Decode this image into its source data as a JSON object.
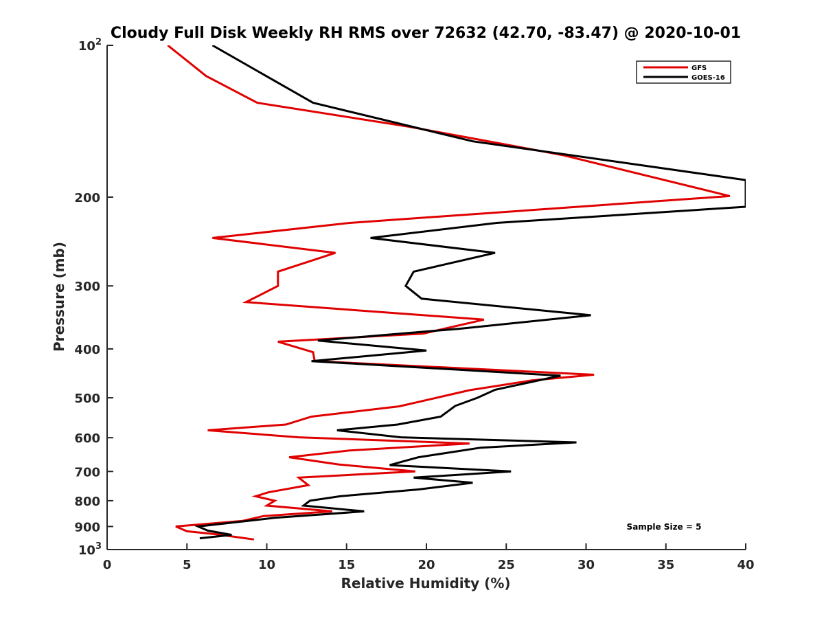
{
  "chart_data": {
    "type": "line",
    "title": "Cloudy Full Disk Weekly RH RMS over 72632 (42.70, -83.47) @ 2020-10-01",
    "xlabel": "Relative Humidity (%)",
    "ylabel": "Pressure (mb)",
    "xlim": [
      0,
      40
    ],
    "ylim": [
      100,
      1000
    ],
    "yscale": "log",
    "yreversed": true,
    "grid": false,
    "x_ticks": [
      "0",
      "5",
      "10",
      "15",
      "20",
      "25",
      "30",
      "35",
      "40"
    ],
    "x_tick_values": [
      0,
      5,
      10,
      15,
      20,
      25,
      30,
      35,
      40
    ],
    "y_ticks": [
      {
        "value": 100,
        "label": "10",
        "sup": "2"
      },
      {
        "value": 200,
        "label": "200",
        "sup": ""
      },
      {
        "value": 300,
        "label": "300",
        "sup": ""
      },
      {
        "value": 400,
        "label": "400",
        "sup": ""
      },
      {
        "value": 500,
        "label": "500",
        "sup": ""
      },
      {
        "value": 600,
        "label": "600",
        "sup": ""
      },
      {
        "value": 700,
        "label": "700",
        "sup": ""
      },
      {
        "value": 800,
        "label": "800",
        "sup": ""
      },
      {
        "value": 900,
        "label": "900",
        "sup": ""
      },
      {
        "value": 1000,
        "label": "10",
        "sup": "3"
      }
    ],
    "legend_position": "top-right",
    "annotation": "Sample Size = 5",
    "series": [
      {
        "name": "GFS",
        "color": "#e00000",
        "points": [
          [
            3.8,
            100
          ],
          [
            6.2,
            115
          ],
          [
            9.4,
            130
          ],
          [
            18.9,
            145
          ],
          [
            28.5,
            165
          ],
          [
            39,
            199
          ],
          [
            15.2,
            225
          ],
          [
            6.6,
            241
          ],
          [
            14.3,
            258
          ],
          [
            10.7,
            281
          ],
          [
            10.7,
            300
          ],
          [
            8.7,
            323
          ],
          [
            23.6,
            350
          ],
          [
            19.8,
            373
          ],
          [
            10.7,
            387
          ],
          [
            12.9,
            406
          ],
          [
            13,
            423
          ],
          [
            30.5,
            450
          ],
          [
            26.6,
            462
          ],
          [
            22.7,
            483
          ],
          [
            18.3,
            520
          ],
          [
            12.8,
            545
          ],
          [
            11.2,
            565
          ],
          [
            6.3,
            580
          ],
          [
            12,
            599
          ],
          [
            22.7,
            616
          ],
          [
            15.2,
            636
          ],
          [
            11.4,
            656
          ],
          [
            14.5,
            678
          ],
          [
            19.3,
            700
          ],
          [
            12,
            720
          ],
          [
            12.6,
            745
          ],
          [
            10.1,
            770
          ],
          [
            9.3,
            784
          ],
          [
            10.5,
            800
          ],
          [
            10,
            818
          ],
          [
            14.1,
            840
          ],
          [
            9.8,
            858
          ],
          [
            8.5,
            877
          ],
          [
            4.3,
            900
          ],
          [
            5,
            920
          ],
          [
            6.8,
            932
          ],
          [
            9.2,
            955
          ]
        ]
      },
      {
        "name": "GOES-16",
        "color": "#000000",
        "points": [
          [
            6.6,
            100
          ],
          [
            12.9,
            130
          ],
          [
            22.9,
            155
          ],
          [
            40,
            185
          ],
          [
            40,
            209
          ],
          [
            24.4,
            225
          ],
          [
            16.5,
            241
          ],
          [
            24.3,
            258
          ],
          [
            19.2,
            281
          ],
          [
            18.7,
            300
          ],
          [
            19.7,
            318
          ],
          [
            30.3,
            343
          ],
          [
            22,
            365
          ],
          [
            13.2,
            385
          ],
          [
            20,
            403
          ],
          [
            12.8,
            423
          ],
          [
            28.4,
            452
          ],
          [
            24.3,
            482
          ],
          [
            23.2,
            500
          ],
          [
            21.8,
            519
          ],
          [
            20.9,
            545
          ],
          [
            18.2,
            565
          ],
          [
            14.4,
            580
          ],
          [
            18.4,
            599
          ],
          [
            29.4,
            613
          ],
          [
            23.4,
            628
          ],
          [
            19.5,
            656
          ],
          [
            17.7,
            680
          ],
          [
            25.3,
            700
          ],
          [
            19.2,
            720
          ],
          [
            22.9,
            737
          ],
          [
            19.5,
            760
          ],
          [
            14.6,
            784
          ],
          [
            12.7,
            800
          ],
          [
            12.3,
            818
          ],
          [
            16.1,
            840
          ],
          [
            10.5,
            865
          ],
          [
            5.7,
            900
          ],
          [
            6.3,
            917
          ],
          [
            7.8,
            935
          ],
          [
            5.8,
            950
          ]
        ]
      }
    ]
  }
}
